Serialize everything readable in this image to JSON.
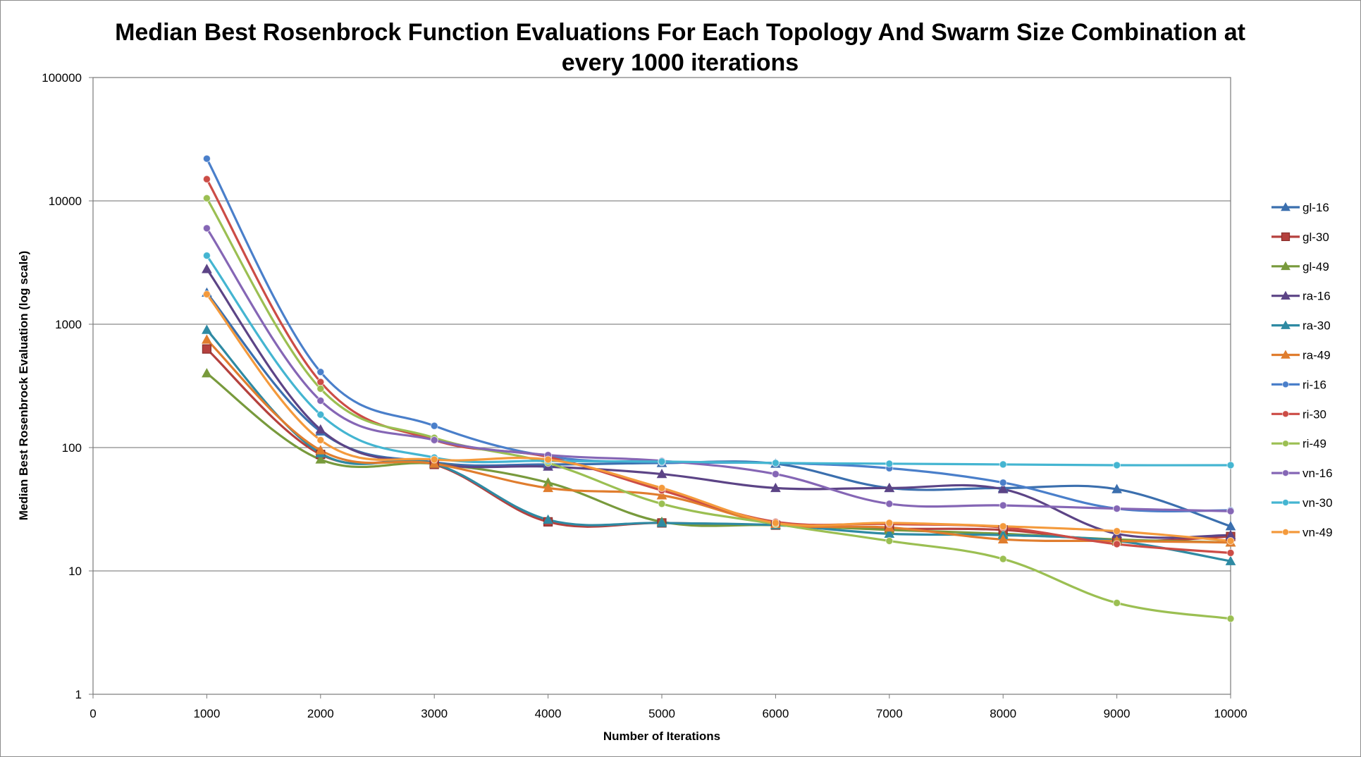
{
  "chart_data": {
    "type": "line",
    "title_line1": "Median Best Rosenbrock Function Evaluations For Each Topology And Swarm Size Combination at",
    "title_line2": "every 1000 iterations",
    "xlabel": "Number of Iterations",
    "ylabel": "Median Best Rosenbrock Evaluation (log scale)",
    "x_scale": "linear",
    "y_scale": "log",
    "xlim": [
      0,
      10000
    ],
    "ylim": [
      1,
      100000
    ],
    "x_ticks": [
      "0",
      "1000",
      "2000",
      "3000",
      "4000",
      "5000",
      "6000",
      "7000",
      "8000",
      "9000",
      "10000"
    ],
    "y_ticks": [
      "1",
      "10",
      "100",
      "1000",
      "10000",
      "100000"
    ],
    "grid": "horizontal major gridlines",
    "legend_position": "right",
    "x": [
      1000,
      2000,
      3000,
      4000,
      5000,
      6000,
      7000,
      8000,
      9000,
      10000
    ],
    "series": [
      {
        "name": "gl-16",
        "color": "#3b6fae",
        "marker": "triangle",
        "values": [
          1800,
          135,
          76,
          73,
          75,
          74,
          47,
          47,
          46,
          23
        ]
      },
      {
        "name": "gl-30",
        "color": "#b5413e",
        "marker": "square",
        "values": [
          630,
          88,
          73,
          25,
          24.5,
          23.5,
          22,
          21.5,
          17.5,
          19
        ]
      },
      {
        "name": "gl-49",
        "color": "#789a3c",
        "marker": "triangle",
        "values": [
          400,
          80,
          74,
          52,
          25,
          23.5,
          21.5,
          20,
          18,
          17
        ]
      },
      {
        "name": "ra-16",
        "color": "#5c4486",
        "marker": "triangle",
        "values": [
          2800,
          140,
          74,
          70,
          61,
          47,
          47,
          46,
          20,
          19.5
        ]
      },
      {
        "name": "ra-30",
        "color": "#2e8aa3",
        "marker": "triangle",
        "values": [
          900,
          90,
          74,
          26,
          24.5,
          23.5,
          20,
          19.5,
          17.5,
          12
        ]
      },
      {
        "name": "ra-49",
        "color": "#e07d2e",
        "marker": "triangle",
        "values": [
          750,
          95,
          74,
          47,
          41,
          24,
          22.5,
          18,
          17.5,
          17
        ]
      },
      {
        "name": "ri-16",
        "color": "#4a7fca",
        "marker": "circle",
        "values": [
          22000,
          410,
          150,
          85,
          76,
          75,
          68,
          52,
          32,
          31
        ]
      },
      {
        "name": "ri-30",
        "color": "#cc4c46",
        "marker": "circle",
        "values": [
          15000,
          340,
          115,
          84,
          45,
          25,
          24,
          22.5,
          16.5,
          14
        ]
      },
      {
        "name": "ri-49",
        "color": "#9bbf52",
        "marker": "circle",
        "values": [
          10500,
          300,
          120,
          75,
          35,
          24,
          17.5,
          12.5,
          5.5,
          4.1
        ]
      },
      {
        "name": "vn-16",
        "color": "#8566b5",
        "marker": "circle",
        "values": [
          6000,
          240,
          115,
          87,
          78,
          61,
          35,
          34,
          32,
          30.5
        ]
      },
      {
        "name": "vn-30",
        "color": "#44b5d1",
        "marker": "circle",
        "values": [
          3600,
          185,
          83,
          78,
          77,
          75,
          74,
          73,
          72,
          72
        ]
      },
      {
        "name": "vn-49",
        "color": "#f49a3c",
        "marker": "circle",
        "values": [
          1750,
          115,
          80,
          80,
          47,
          24.5,
          24.5,
          23,
          21,
          17.5
        ]
      }
    ]
  }
}
